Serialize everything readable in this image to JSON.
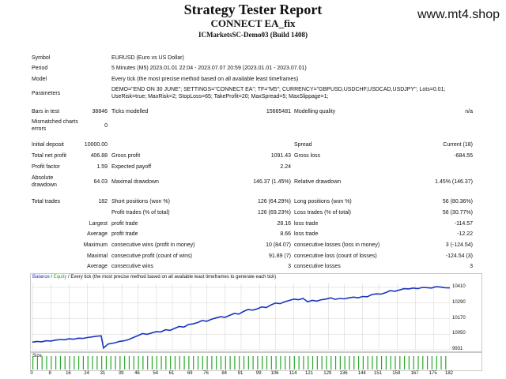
{
  "header": {
    "title": "Strategy Tester Report",
    "subtitle": "CONNECT EA_fix",
    "server": "ICMarketsSC-Demo03 (Build 1408)",
    "site": "www.mt4.shop"
  },
  "info": [
    {
      "label": "Symbol",
      "value": "EURUSD (Euro vs US Dollar)"
    },
    {
      "label": "Period",
      "value": "5 Minutes (M5) 2023.01.01 22:04 - 2023.07.07 20:59 (2023.01.01 - 2023.07.01)"
    },
    {
      "label": "Model",
      "value": "Every tick (the most precise method based on all available least timeframes)"
    },
    {
      "label": "Parameters",
      "value": "DEMO=\"END ON 30 JUNE\"; SETTINGS=\"CONNECT EA\"; TF=\"M5\"; CURRENCY=\"GBPUSD,USDCHF,USDCAD,USDJPY\"; Lots=0.01;",
      "value2": "UseRisk=true; MaxRisk=2; StopLoss=65; TakeProfit=20; MaxSpread=5; MaxSlippage=1;"
    }
  ],
  "bars": {
    "bars_label": "Bars in test",
    "bars_value": "38846",
    "ticks_label": "Ticks modelled",
    "ticks_value": "15665481",
    "quality_label": "Modelling quality",
    "quality_value": "n/a",
    "mismatch_label1": "Mismatched charts",
    "mismatch_label2": "errors",
    "mismatch_value": "0"
  },
  "stats": {
    "initial_deposit_label": "Initial deposit",
    "initial_deposit": "10000.00",
    "spread_label": "Spread",
    "spread_value": "Current (18)",
    "net_profit_label": "Total net profit",
    "net_profit": "406.88",
    "gross_profit_label": "Gross profit",
    "gross_profit": "1091.43",
    "gross_loss_label": "Gross loss",
    "gross_loss": "-684.55",
    "profit_factor_label": "Profit factor",
    "profit_factor": "1.59",
    "expected_payoff_label": "Expected payoff",
    "expected_payoff": "2.24",
    "abs_dd_label1": "Absolute",
    "abs_dd_label2": "drawdown",
    "abs_dd": "64.03",
    "max_dd_label": "Maximal drawdown",
    "max_dd": "146.37 (1.45%)",
    "rel_dd_label": "Relative drawdown",
    "rel_dd": "1.45% (146.37)"
  },
  "trades": {
    "total_label": "Total trades",
    "total": "182",
    "short_label": "Short positions (won %)",
    "short": "126 (64.29%)",
    "long_label": "Long positions (won %)",
    "long": "56 (80.36%)",
    "profit_trades_label": "Profit trades (% of total)",
    "profit_trades": "126 (69.23%)",
    "loss_trades_label": "Loss trades (% of total)",
    "loss_trades": "56 (30.77%)",
    "largest_label": "Largest",
    "largest_profit_label": "profit trade",
    "largest_profit": "28.16",
    "largest_loss_label": "loss trade",
    "largest_loss": "-114.57",
    "average_label": "Average",
    "average_profit_label": "profit trade",
    "average_profit": "8.66",
    "average_loss_label": "loss trade",
    "average_loss": "-12.22",
    "maximum_label": "Maximum",
    "max_cons_wins_label": "consecutive wins (profit in money)",
    "max_cons_wins": "10 (84.07)",
    "max_cons_losses_label": "consecutive losses (loss in money)",
    "max_cons_losses": "3 (-124.54)",
    "maximal_label": "Maximal",
    "maximal_cons_profit_label": "consecutive profit (count of wins)",
    "maximal_cons_profit": "91.89 (7)",
    "maximal_cons_loss_label": "consecutive loss (count of losses)",
    "maximal_cons_loss": "-124.54 (3)",
    "average2_label": "Average",
    "avg_cons_wins_label": "consecutive wins",
    "avg_cons_wins": "3",
    "avg_cons_losses_label": "consecutive losses",
    "avg_cons_losses": "3"
  },
  "chart_legend": {
    "balance": "Balance",
    "sep1": " / ",
    "equity": "Equity",
    "rest": " / Every tick (the most precise method based on all available least timeframes to generate each tick)"
  },
  "size_label": "Size",
  "colors": {
    "balance_line": "#1a35c0",
    "size_bars": "#2aa82a",
    "grid": "#d0d0d0"
  },
  "chart_data": {
    "type": "line",
    "series": [
      {
        "name": "Balance",
        "x": [
          0,
          2,
          4,
          6,
          8,
          10,
          12,
          14,
          16,
          18,
          20,
          22,
          24,
          26,
          28,
          30,
          31,
          33,
          36,
          38,
          40,
          42,
          44,
          46,
          48,
          50,
          52,
          54,
          56,
          58,
          60,
          62,
          64,
          66,
          68,
          70,
          72,
          74,
          76,
          78,
          80,
          82,
          84,
          86,
          88,
          90,
          92,
          94,
          96,
          98,
          100,
          102,
          104,
          106,
          108,
          110,
          112,
          114,
          116,
          118,
          120,
          122,
          124,
          126,
          128,
          130,
          132,
          134,
          136,
          138,
          140,
          142,
          144,
          146,
          148,
          150,
          152,
          154,
          156,
          158,
          160,
          162,
          164,
          166,
          168,
          170,
          172,
          174,
          176,
          178,
          180,
          182
        ],
        "y": [
          9990,
          9995,
          9992,
          10000,
          9998,
          10005,
          10010,
          10008,
          10015,
          10012,
          10020,
          10018,
          10025,
          10030,
          10035,
          10038,
          9945,
          9975,
          9985,
          9995,
          10000,
          10010,
          10025,
          10040,
          10055,
          10050,
          10060,
          10070,
          10068,
          10085,
          10080,
          10095,
          10110,
          10105,
          10125,
          10130,
          10140,
          10155,
          10150,
          10165,
          10175,
          10185,
          10180,
          10195,
          10210,
          10205,
          10225,
          10240,
          10235,
          10245,
          10260,
          10255,
          10275,
          10290,
          10285,
          10300,
          10310,
          10320,
          10315,
          10325,
          10300,
          10310,
          10305,
          10315,
          10320,
          10330,
          10318,
          10325,
          10322,
          10330,
          10335,
          10330,
          10340,
          10338,
          10355,
          10360,
          10358,
          10370,
          10385,
          10380,
          10390,
          10400,
          10398,
          10405,
          10400,
          10410,
          10408,
          10405,
          10415,
          10412,
          10407,
          10406
        ]
      }
    ],
    "x_ticks": [
      "0",
      "8",
      "16",
      "24",
      "31",
      "39",
      "46",
      "54",
      "61",
      "69",
      "76",
      "84",
      "91",
      "99",
      "106",
      "114",
      "121",
      "129",
      "136",
      "144",
      "151",
      "159",
      "167",
      "175",
      "182"
    ],
    "y_ticks": [
      "10410",
      "10290",
      "10170",
      "10050",
      "9931"
    ],
    "xlim": [
      0,
      182
    ],
    "ylim": [
      9931,
      10440
    ],
    "grid": true
  }
}
